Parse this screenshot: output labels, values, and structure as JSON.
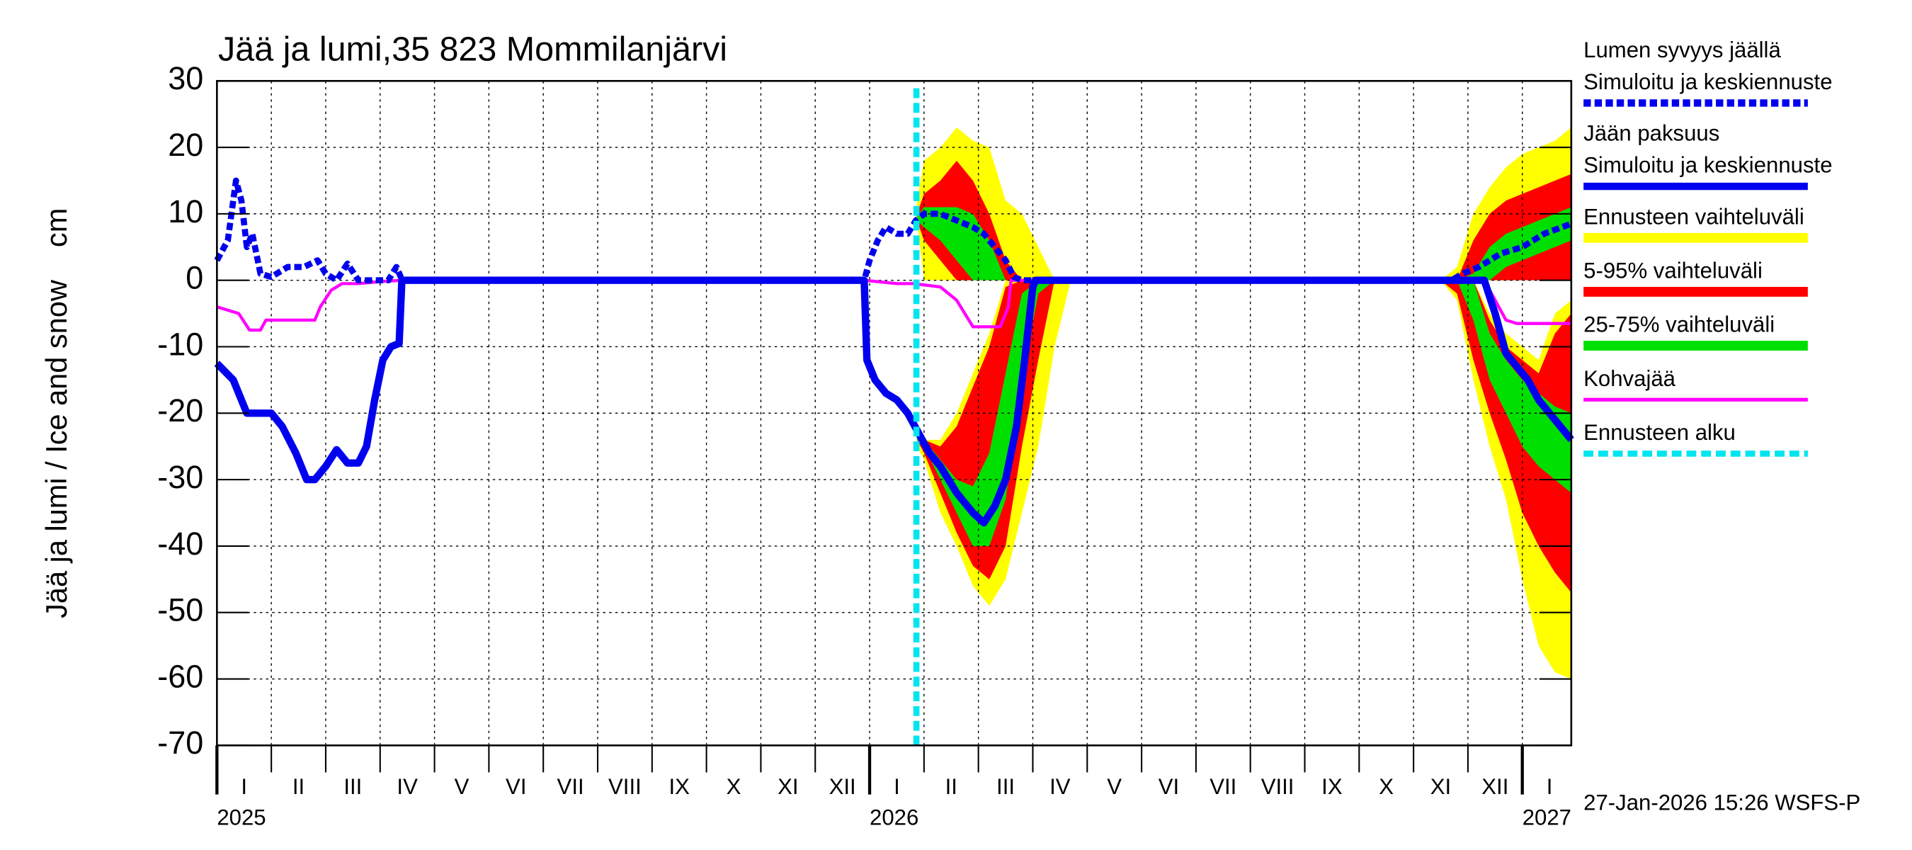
{
  "chart_data": {
    "type": "line",
    "title": "Jää ja lumi,35 823 Mommilanjärvi",
    "ylabel": "Jää ja lumi / Ice and snow    cm",
    "footer": "27-Jan-2026 15:26 WSFS-P",
    "ylim": [
      -70,
      30
    ],
    "yticks": [
      30,
      20,
      10,
      0,
      -10,
      -20,
      -30,
      -40,
      -50,
      -60,
      -70
    ],
    "xlim": [
      0,
      24.9
    ],
    "xticks": [
      {
        "value": 0.5,
        "label": "I"
      },
      {
        "value": 1.5,
        "label": "II"
      },
      {
        "value": 2.5,
        "label": "III"
      },
      {
        "value": 3.5,
        "label": "IV"
      },
      {
        "value": 4.5,
        "label": "V"
      },
      {
        "value": 5.5,
        "label": "VI"
      },
      {
        "value": 6.5,
        "label": "VII"
      },
      {
        "value": 7.5,
        "label": "VIII"
      },
      {
        "value": 8.5,
        "label": "IX"
      },
      {
        "value": 9.5,
        "label": "X"
      },
      {
        "value": 10.5,
        "label": "XI"
      },
      {
        "value": 11.5,
        "label": "XII"
      },
      {
        "value": 12.5,
        "label": "I"
      },
      {
        "value": 13.5,
        "label": "II"
      },
      {
        "value": 14.5,
        "label": "III"
      },
      {
        "value": 15.5,
        "label": "IV"
      },
      {
        "value": 16.5,
        "label": "V"
      },
      {
        "value": 17.5,
        "label": "VI"
      },
      {
        "value": 18.5,
        "label": "VII"
      },
      {
        "value": 19.5,
        "label": "VIII"
      },
      {
        "value": 20.5,
        "label": "IX"
      },
      {
        "value": 21.5,
        "label": "X"
      },
      {
        "value": 22.5,
        "label": "XI"
      },
      {
        "value": 23.5,
        "label": "XII"
      },
      {
        "value": 24.5,
        "label": "I"
      }
    ],
    "year_labels": [
      {
        "value": 0,
        "label": "2025"
      },
      {
        "value": 12,
        "label": "2026"
      },
      {
        "value": 24,
        "label": "2027"
      }
    ],
    "grid": true,
    "bands": [
      {
        "name": "Ennusteen vaihteluväli",
        "color": "#ffff00",
        "x": [
          12.87,
          13.0,
          13.3,
          13.6,
          13.9,
          14.2,
          14.5,
          14.8,
          15.1,
          15.4,
          15.7,
          22.5,
          22.8,
          23.1,
          23.4,
          23.7,
          24.0,
          24.3,
          24.6,
          24.9
        ],
        "snow_high": [
          12,
          18,
          20,
          23,
          21,
          20,
          12,
          10,
          5,
          0,
          0,
          0,
          2,
          10,
          14,
          17,
          19,
          20,
          21,
          23
        ],
        "snow_low": [
          9,
          0,
          0,
          0,
          0,
          0,
          0,
          0,
          0,
          0,
          0,
          0,
          0,
          0,
          0,
          0,
          0,
          0,
          0,
          0
        ],
        "ice_high": [
          -23,
          -24,
          -24,
          -20,
          -14,
          -8,
          0,
          0,
          0,
          0,
          0,
          0,
          0,
          0,
          -5,
          -8,
          -10,
          -12,
          -5,
          -3
        ],
        "ice_low": [
          -25,
          -27,
          -35,
          -40,
          -46,
          -49,
          -45,
          -35,
          -25,
          -10,
          0,
          0,
          -3,
          -15,
          -25,
          -33,
          -45,
          -55,
          -59,
          -60
        ]
      },
      {
        "name": "5-95% vaihteluväli",
        "color": "#ff0000",
        "x": [
          12.87,
          13.0,
          13.3,
          13.6,
          13.9,
          14.2,
          14.5,
          14.8,
          15.1,
          15.4,
          15.7,
          22.5,
          22.8,
          23.1,
          23.4,
          23.7,
          24.0,
          24.3,
          24.6,
          24.9
        ],
        "snow_high": [
          10,
          13,
          15,
          18,
          15,
          10,
          3,
          0,
          0,
          0,
          0,
          0,
          0,
          6,
          10,
          12,
          13,
          14,
          15,
          16
        ],
        "snow_low": [
          9,
          6,
          3,
          0,
          0,
          0,
          0,
          0,
          0,
          0,
          0,
          0,
          0,
          0,
          0,
          0,
          0,
          0,
          0,
          0
        ],
        "ice_high": [
          -23,
          -24,
          -25,
          -22,
          -16,
          -10,
          -1,
          0,
          0,
          0,
          0,
          0,
          0,
          0,
          -6,
          -10,
          -12,
          -14,
          -8,
          -5
        ],
        "ice_low": [
          -24,
          -26,
          -32,
          -38,
          -43,
          -45,
          -40,
          -25,
          -12,
          0,
          0,
          0,
          -2,
          -12,
          -20,
          -27,
          -35,
          -40,
          -44,
          -47
        ]
      },
      {
        "name": "25-75% vaihteluväli",
        "color": "#00e000",
        "x": [
          12.87,
          13.0,
          13.3,
          13.6,
          13.9,
          14.2,
          14.5,
          14.8,
          15.1,
          15.4,
          15.7,
          22.5,
          22.8,
          23.1,
          23.4,
          23.7,
          24.0,
          24.3,
          24.6,
          24.9
        ],
        "snow_high": [
          9.5,
          11,
          11,
          11,
          10,
          6,
          0,
          0,
          0,
          0,
          0,
          0,
          0,
          1,
          5,
          7,
          8,
          9,
          10,
          11
        ],
        "snow_low": [
          9,
          8,
          6,
          3,
          0,
          0,
          0,
          0,
          0,
          0,
          0,
          0,
          0,
          0,
          0,
          2,
          3,
          4,
          5,
          6
        ],
        "ice_high": [
          -23,
          -24,
          -27,
          -30,
          -31,
          -26,
          -14,
          -2,
          0,
          0,
          0,
          0,
          0,
          0,
          -8,
          -12,
          -15,
          -17,
          -19,
          -20
        ],
        "ice_low": [
          -24,
          -25,
          -30,
          -35,
          -40,
          -40,
          -33,
          -15,
          -2,
          0,
          0,
          0,
          0,
          -6,
          -15,
          -20,
          -25,
          -28,
          -30,
          -32
        ]
      }
    ],
    "series": [
      {
        "name_lines": [
          "Lumen syvyys jäällä",
          "Simuloitu ja keskiennuste"
        ],
        "color": "#0000ee",
        "style": "dashed",
        "x": [
          0,
          0.2,
          0.35,
          0.45,
          0.55,
          0.65,
          0.8,
          1.0,
          1.3,
          1.6,
          1.85,
          2.0,
          2.2,
          2.4,
          2.6,
          2.9,
          3.15,
          3.3,
          3.38,
          3.45,
          11.9,
          12.0,
          12.15,
          12.3,
          12.5,
          12.7,
          12.85,
          13.0,
          13.3,
          13.6,
          13.9,
          14.1,
          14.3,
          14.5,
          14.65,
          14.8,
          22.7,
          22.9,
          23.2,
          23.6,
          24.0,
          24.4,
          24.9
        ],
        "values": [
          3,
          6,
          15,
          12,
          5,
          7,
          1,
          0.5,
          2,
          2,
          3,
          1,
          0,
          2.5,
          0,
          0,
          0,
          2,
          0.5,
          0,
          0,
          3,
          6,
          8,
          7,
          7,
          9,
          10,
          10,
          9,
          8,
          7,
          5,
          3,
          0.5,
          0,
          0,
          1,
          2,
          4,
          5,
          7,
          8.5
        ]
      },
      {
        "name_lines": [
          "Jään paksuus",
          "Simuloitu ja keskiennuste"
        ],
        "color": "#0000ee",
        "style": "solid",
        "x": [
          0,
          0.3,
          0.55,
          0.8,
          1.0,
          1.2,
          1.45,
          1.65,
          1.8,
          2.0,
          2.2,
          2.4,
          2.6,
          2.75,
          2.9,
          3.05,
          3.2,
          3.35,
          3.4,
          11.9,
          11.95,
          12.1,
          12.3,
          12.5,
          12.7,
          12.9,
          13.1,
          13.3,
          13.6,
          13.9,
          14.1,
          14.3,
          14.5,
          14.7,
          14.85,
          15.0,
          15.05,
          23.3,
          23.5,
          23.7,
          23.9,
          24.1,
          24.3,
          24.5,
          24.7,
          24.9
        ],
        "values": [
          -12.5,
          -15,
          -20,
          -20,
          -20,
          -22,
          -26,
          -30,
          -30,
          -28,
          -25.5,
          -27.5,
          -27.5,
          -25,
          -18,
          -12,
          -10,
          -9.5,
          0,
          0,
          -12,
          -15,
          -17,
          -18,
          -20,
          -23,
          -26,
          -28,
          -32,
          -35,
          -36.5,
          -34,
          -30,
          -22,
          -12,
          -1,
          0,
          0,
          -5,
          -11,
          -13,
          -15,
          -18,
          -20,
          -22,
          -24
        ]
      },
      {
        "name_lines": [
          "Kohvajää"
        ],
        "color": "#ff00ff",
        "style": "thin",
        "x": [
          0,
          0.4,
          0.6,
          0.8,
          0.9,
          1.8,
          1.9,
          2.1,
          2.3,
          2.6,
          3.0,
          3.4,
          11.9,
          12.5,
          12.8,
          13.3,
          13.6,
          13.9,
          14.1,
          14.4,
          14.55,
          14.6,
          23.3,
          23.5,
          23.7,
          23.9,
          24.9
        ],
        "values": [
          -4,
          -5,
          -7.5,
          -7.5,
          -6,
          -6,
          -4,
          -1.5,
          -0.5,
          -0.5,
          -0.2,
          0,
          0,
          -0.5,
          -0.5,
          -1,
          -3,
          -7,
          -7,
          -7,
          -4,
          0,
          0,
          -3,
          -6,
          -6.5,
          -6.5
        ]
      }
    ],
    "forecast_start": {
      "label": "Ennusteen alku",
      "value": 12.86,
      "color": "#00e5ee"
    }
  }
}
